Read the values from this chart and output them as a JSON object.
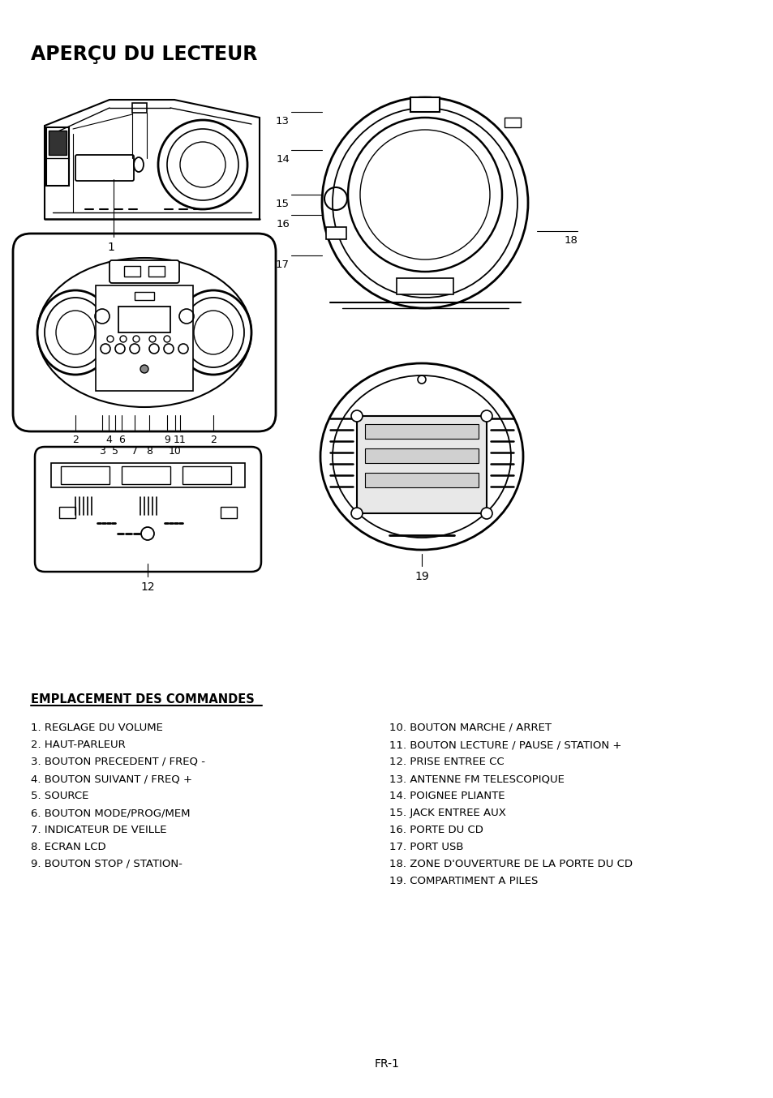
{
  "title": "APERÇU DU LECTEUR",
  "title_fontsize": 17,
  "background_color": "#ffffff",
  "text_color": "#000000",
  "section_header": "EMPLACEMENT DES COMMANDES",
  "section_header_fontsize": 10.5,
  "left_items": [
    "1. REGLAGE DU VOLUME",
    "2. HAUT-PARLEUR",
    "3. BOUTON PRECEDENT / FREQ -",
    "4. BOUTON SUIVANT / FREQ +",
    "5. SOURCE",
    "6. BOUTON MODE/PROG/MEM",
    "7. INDICATEUR DE VEILLE",
    "8. ECRAN LCD",
    "9. BOUTON STOP / STATION-"
  ],
  "right_items": [
    "10. BOUTON MARCHE / ARRET",
    "11. BOUTON LECTURE / PAUSE / STATION +",
    "12. PRISE ENTREE CC",
    "13. ANTENNE FM TELESCOPIQUE",
    "14. POIGNEE PLIANTE",
    "15. JACK ENTREE AUX",
    "16. PORTE DU CD",
    "17. PORT USB",
    "18. ZONE D'OUVERTURE DE LA PORTE DU CD",
    "19. COMPARTIMENT A PILES"
  ],
  "footer": "FR-1",
  "item_fontsize": 9.5,
  "footer_fontsize": 10
}
